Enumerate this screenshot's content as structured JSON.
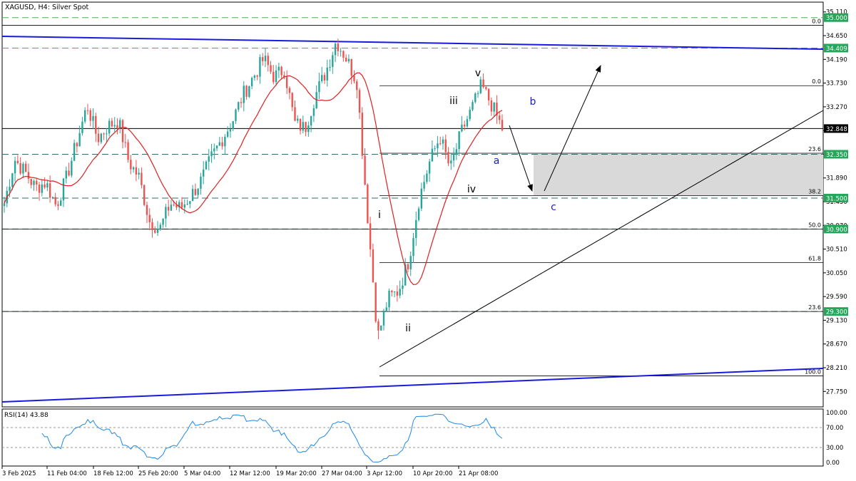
{
  "header": {
    "title": "XAGUSD, H4:  Silver Spot"
  },
  "rsi": {
    "label": "RSI(14) 43.88"
  },
  "colors": {
    "bull": "#26a69a",
    "bear": "#ef5350",
    "ma": "#e02020",
    "channel": "#1a1adf",
    "green_level": "#4caf50",
    "level_label_bg": "#26a65b",
    "price_label_bg": "#000000",
    "wave_blue": "#1a1adf",
    "zone": "#d9d9d9",
    "rsi_line": "#1e88e5"
  },
  "chart_data": {
    "type": "candlestick",
    "symbol": "XAGUSD",
    "timeframe": "H4",
    "instrument": "Silver Spot",
    "ylim": [
      27.45,
      35.3
    ],
    "y_ticks": [
      "35.110",
      "34.650",
      "34.190",
      "33.730",
      "33.270",
      "32.810",
      "32.350",
      "31.890",
      "31.430",
      "30.970",
      "30.510",
      "30.050",
      "29.590",
      "29.130",
      "28.670",
      "28.210",
      "27.750"
    ],
    "x_ticks": [
      "3 Feb 2025",
      "11 Feb 04:00",
      "18 Feb 12:00",
      "25 Feb 20:00",
      "5 Mar 04:00",
      "12 Mar 12:00",
      "19 Mar 20:00",
      "27 Mar 04:00",
      "3 Apr 12:00",
      "10 Apr 20:00",
      "21 Apr 08:00"
    ],
    "price_labels": [
      {
        "value": 35.0,
        "text": "35.000",
        "kind": "green"
      },
      {
        "value": 34.409,
        "text": "34.409",
        "kind": "green"
      },
      {
        "value": 32.848,
        "text": "32.848",
        "kind": "current"
      },
      {
        "value": 32.35,
        "text": "32.350",
        "kind": "green"
      },
      {
        "value": 31.5,
        "text": "31.500",
        "kind": "green"
      },
      {
        "value": 30.9,
        "text": "30.900",
        "kind": "green"
      },
      {
        "value": 29.3,
        "text": "29.300",
        "kind": "green"
      }
    ],
    "fib_levels": [
      {
        "value": 34.85,
        "label": "0.0"
      },
      {
        "value": 33.68,
        "label": "0.0"
      },
      {
        "value": 32.37,
        "label": "23.6"
      },
      {
        "value": 31.55,
        "label": "38.2"
      },
      {
        "value": 30.9,
        "label": "50.0"
      },
      {
        "value": 30.25,
        "label": "61.8"
      },
      {
        "value": 29.3,
        "label": "23.6"
      },
      {
        "value": 28.05,
        "label": "100.0"
      }
    ],
    "wave_labels": [
      {
        "text": "v",
        "color": "black"
      },
      {
        "text": "iii",
        "color": "black"
      },
      {
        "text": "b",
        "color": "blue"
      },
      {
        "text": "a",
        "color": "blue"
      },
      {
        "text": "iv",
        "color": "black"
      },
      {
        "text": "c",
        "color": "blue"
      },
      {
        "text": "i",
        "color": "black"
      },
      {
        "text": "ii",
        "color": "black"
      }
    ],
    "rsi": {
      "period": 14,
      "value": 43.88,
      "ylim": [
        0,
        100
      ],
      "ticks": [
        "100.00",
        "70.00",
        "30.00",
        "0.00"
      ],
      "levels": [
        70,
        30
      ]
    },
    "price_path": [
      31.4,
      32.25,
      32.0,
      31.7,
      31.8,
      31.35,
      31.9,
      32.6,
      33.3,
      32.65,
      32.9,
      33.0,
      32.2,
      31.9,
      31.05,
      30.9,
      31.4,
      31.3,
      31.55,
      31.85,
      32.3,
      32.65,
      33.0,
      33.5,
      33.85,
      34.2,
      33.85,
      34.0,
      32.95,
      32.85,
      33.5,
      33.95,
      34.55,
      34.2,
      33.75,
      31.2,
      28.8,
      29.55,
      29.7,
      30.3,
      31.5,
      32.2,
      32.7,
      32.05,
      32.75,
      33.2,
      33.68,
      33.3,
      32.85
    ]
  }
}
